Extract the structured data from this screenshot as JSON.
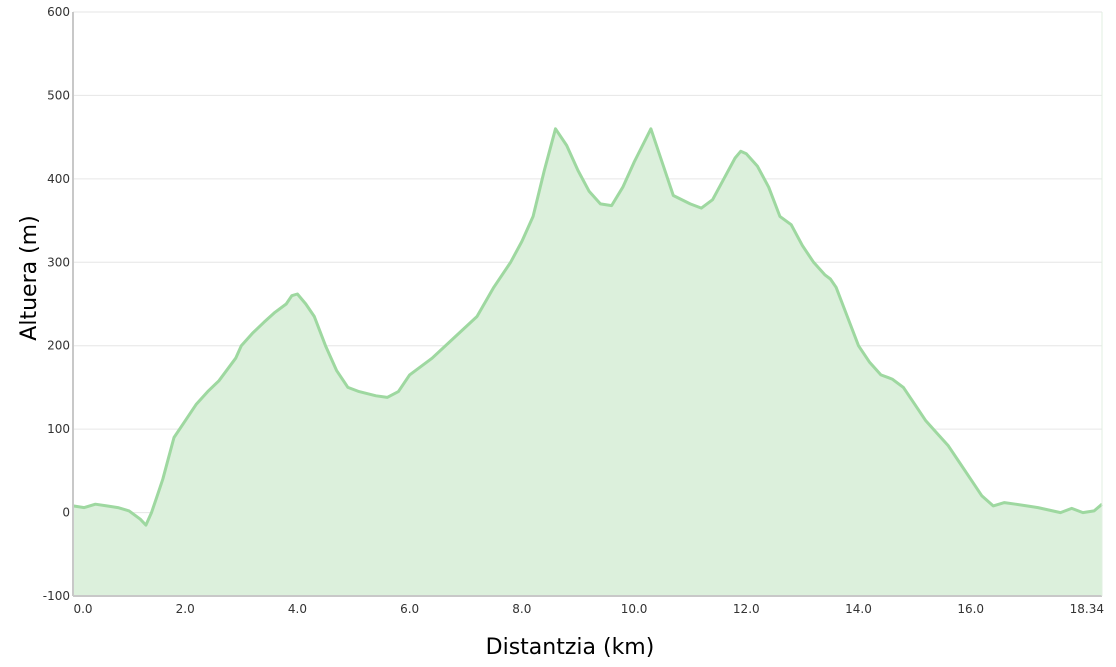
{
  "chart_data": {
    "type": "area",
    "xlabel": "Distantzia (km)",
    "ylabel": "Altuera (m)",
    "xlim": [
      0,
      18.34
    ],
    "ylim": [
      -100,
      600
    ],
    "x_ticks": [
      0,
      2,
      4,
      6,
      8,
      10,
      12,
      14,
      16,
      18.34
    ],
    "x_tick_labels": [
      "0.0",
      "2.0",
      "4.0",
      "6.0",
      "8.0",
      "10.0",
      "12.0",
      "14.0",
      "16.0",
      "18.34"
    ],
    "y_ticks": [
      -100,
      0,
      100,
      200,
      300,
      400,
      500,
      600
    ],
    "y_tick_labels": [
      "-100",
      "0",
      "100",
      "200",
      "300",
      "400",
      "500",
      "600"
    ],
    "grid": true,
    "colors": {
      "line": "#9ed8a0",
      "fill": "#dcf0dc",
      "grid": "#e6e6e6",
      "axis": "#c8c8c8"
    },
    "series": [
      {
        "x": [
          0,
          0.2,
          0.4,
          0.6,
          0.8,
          1.0,
          1.2,
          1.3,
          1.4,
          1.5,
          1.6,
          1.7,
          1.8,
          2.0,
          2.2,
          2.4,
          2.6,
          2.9,
          3.0,
          3.2,
          3.4,
          3.6,
          3.8,
          3.9,
          4.0,
          4.15,
          4.3,
          4.5,
          4.7,
          4.9,
          5.1,
          5.4,
          5.6,
          5.8,
          6.0,
          6.4,
          6.8,
          7.2,
          7.5,
          7.8,
          8.0,
          8.2,
          8.4,
          8.6,
          8.8,
          9.0,
          9.2,
          9.4,
          9.6,
          9.8,
          10.0,
          10.15,
          10.3,
          10.5,
          10.7,
          11.0,
          11.2,
          11.4,
          11.6,
          11.8,
          11.9,
          12.0,
          12.2,
          12.4,
          12.6,
          12.8,
          13.0,
          13.2,
          13.4,
          13.5,
          13.6,
          13.8,
          14.0,
          14.2,
          14.4,
          14.6,
          14.8,
          15.0,
          15.2,
          15.4,
          15.6,
          15.8,
          16.0,
          16.2,
          16.4,
          16.6,
          16.8,
          17.0,
          17.2,
          17.4,
          17.6,
          17.8,
          18.0,
          18.2,
          18.34
        ],
        "y": [
          8,
          6,
          10,
          8,
          6,
          2,
          -8,
          -15,
          0,
          20,
          40,
          65,
          90,
          110,
          130,
          145,
          158,
          185,
          200,
          215,
          228,
          240,
          250,
          260,
          262,
          250,
          235,
          200,
          170,
          150,
          145,
          140,
          138,
          145,
          165,
          185,
          210,
          235,
          270,
          300,
          325,
          355,
          410,
          460,
          440,
          410,
          385,
          370,
          368,
          390,
          420,
          440,
          460,
          420,
          380,
          370,
          365,
          375,
          400,
          425,
          433,
          430,
          415,
          390,
          355,
          345,
          320,
          300,
          285,
          280,
          270,
          235,
          200,
          180,
          165,
          160,
          150,
          130,
          110,
          95,
          80,
          60,
          40,
          20,
          8,
          12,
          10,
          8,
          6,
          3,
          0,
          5,
          0,
          2,
          10
        ]
      }
    ]
  }
}
